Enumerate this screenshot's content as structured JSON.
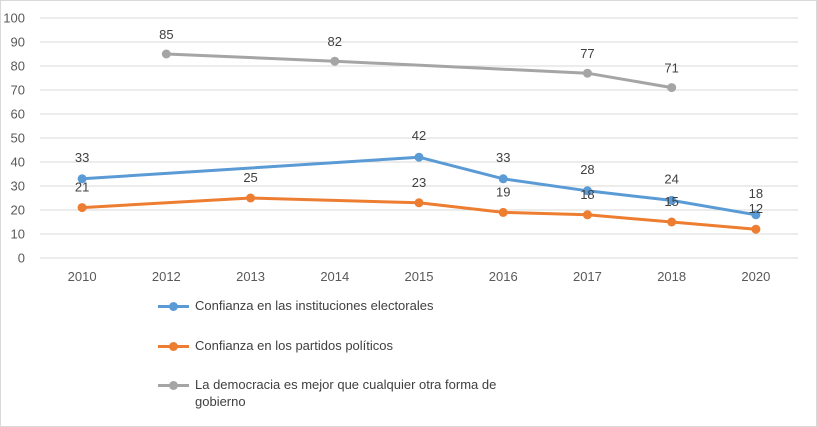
{
  "chart_data": {
    "type": "line",
    "title": "",
    "xlabel": "",
    "ylabel": "",
    "categories": [
      "2010",
      "2012",
      "2013",
      "2014",
      "2015",
      "2016",
      "2017",
      "2018",
      "2020"
    ],
    "ylim": [
      0,
      100
    ],
    "yticks": [
      0,
      10,
      20,
      30,
      40,
      50,
      60,
      70,
      80,
      90,
      100
    ],
    "grid": true,
    "legend_position": "bottom-left",
    "series": [
      {
        "name": "Confianza en las instituciones electorales",
        "color": "#5b9bd5",
        "values": [
          33,
          null,
          null,
          null,
          42,
          33,
          28,
          24,
          18
        ],
        "labels": [
          "33",
          null,
          null,
          null,
          "42",
          "33",
          "28",
          "24",
          "18"
        ]
      },
      {
        "name": "Confianza en los partidos políticos",
        "color": "#ed7d31",
        "values": [
          21,
          null,
          25,
          null,
          23,
          19,
          18,
          15,
          12
        ],
        "labels": [
          "21",
          null,
          "25",
          null,
          "23",
          "19",
          "18",
          "15",
          "12"
        ]
      },
      {
        "name": "La democracia es mejor que cualquier otra forma de gobierno",
        "color": "#a5a5a5",
        "values": [
          null,
          85,
          null,
          82,
          null,
          null,
          77,
          71,
          null
        ],
        "labels": [
          null,
          "85",
          null,
          "82",
          null,
          null,
          "77",
          "71",
          null
        ]
      }
    ]
  }
}
